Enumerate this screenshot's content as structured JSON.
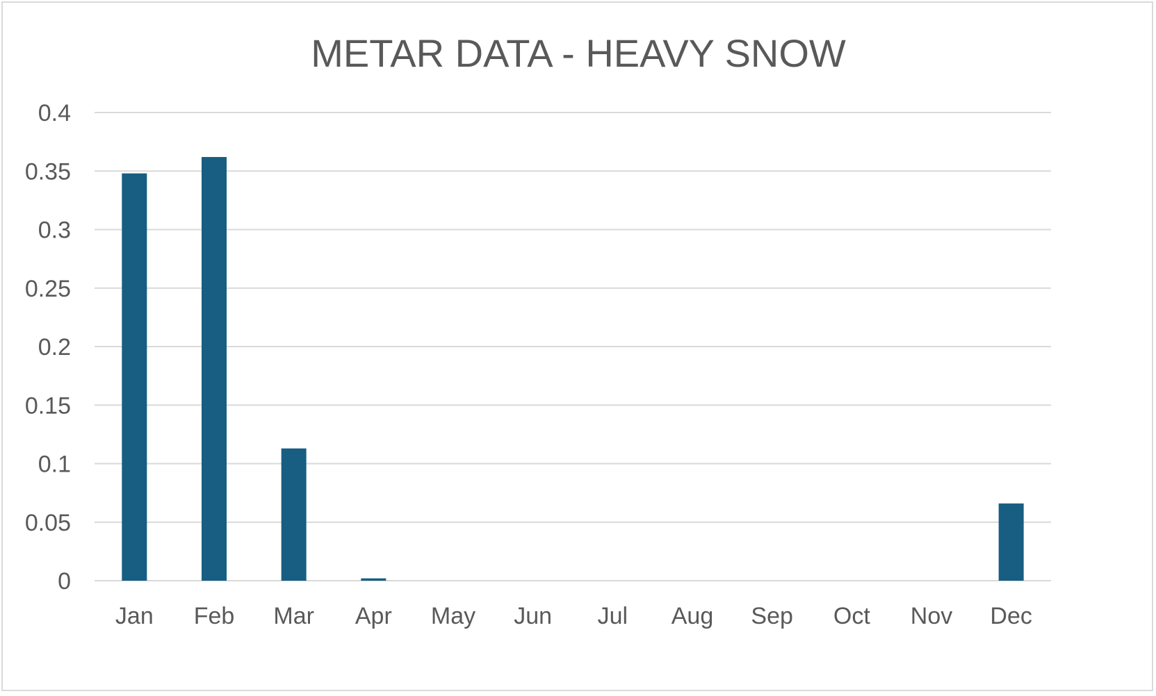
{
  "chart_data": {
    "type": "bar",
    "title": "METAR DATA - HEAVY SNOW",
    "xlabel": "",
    "ylabel": "",
    "categories": [
      "Jan",
      "Feb",
      "Mar",
      "Apr",
      "May",
      "Jun",
      "Jul",
      "Aug",
      "Sep",
      "Oct",
      "Nov",
      "Dec"
    ],
    "values": [
      0.348,
      0.362,
      0.113,
      0.002,
      0,
      0,
      0,
      0,
      0,
      0,
      0,
      0.066
    ],
    "ylim": [
      0,
      0.4
    ],
    "yticks": [
      0,
      0.05,
      0.1,
      0.15,
      0.2,
      0.25,
      0.3,
      0.35,
      0.4
    ],
    "ytick_labels": [
      "0",
      "0.05",
      "0.1",
      "0.15",
      "0.2",
      "0.25",
      "0.3",
      "0.35",
      "0.4"
    ],
    "grid": true,
    "legend": "none",
    "bar_color": "#175e82"
  }
}
